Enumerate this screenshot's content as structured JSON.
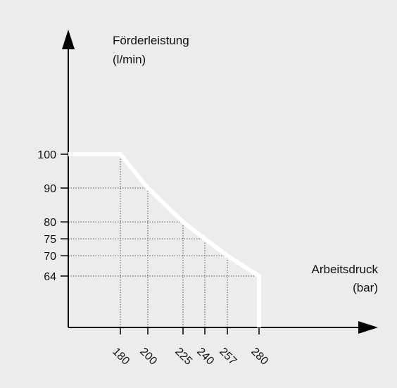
{
  "chart_data": {
    "type": "line",
    "ylabel_line1": "Förderleistung",
    "ylabel_line2": "(l/min)",
    "xlabel_line1": "Arbeitsdruck",
    "xlabel_line2": "(bar)",
    "x": [
      0,
      180,
      200,
      225,
      240,
      257,
      280,
      280
    ],
    "y": [
      100,
      100,
      90,
      80,
      75,
      70,
      64,
      0
    ],
    "x_ticks": [
      180,
      200,
      225,
      240,
      257,
      280
    ],
    "y_ticks": [
      100,
      90,
      80,
      75,
      70,
      64
    ],
    "x_tick_labels": [
      "180",
      "200",
      "225",
      "240",
      "257",
      "280"
    ],
    "y_tick_labels": [
      "100",
      "90",
      "80",
      "75",
      "70",
      "64"
    ],
    "dotted_guides": true,
    "grid": false,
    "line_color": "#ffffff",
    "axis_color": "#000000",
    "background": "#ececec"
  }
}
